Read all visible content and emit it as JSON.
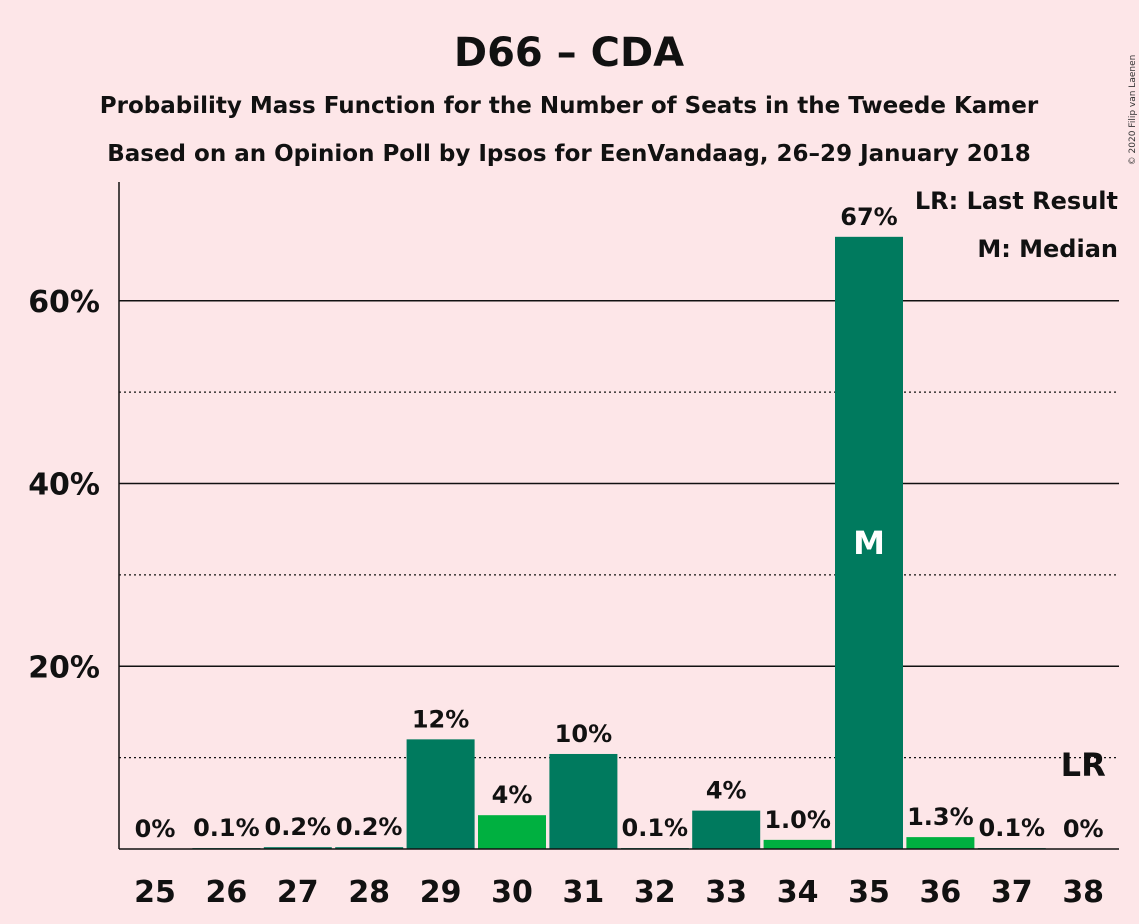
{
  "chart_data": {
    "type": "bar",
    "title": "D66 – CDA",
    "subtitle_lines": [
      "Probability Mass Function for the Number of Seats in the Tweede Kamer",
      "Based on an Opinion Poll by Ipsos for EenVandaag, 26–29 January 2018"
    ],
    "copyright": "© 2020 Filip van Laenen",
    "categories": [
      "25",
      "26",
      "27",
      "28",
      "29",
      "30",
      "31",
      "32",
      "33",
      "34",
      "35",
      "36",
      "37",
      "38"
    ],
    "values": [
      0,
      0.1,
      0.2,
      0.2,
      12,
      3.7,
      10.4,
      0.1,
      4.2,
      1.0,
      67,
      1.3,
      0.1,
      0
    ],
    "labels": [
      "0%",
      "0.1%",
      "0.2%",
      "0.2%",
      "12%",
      "4%",
      "10%",
      "0.1%",
      "4%",
      "1.0%",
      "67%",
      "1.3%",
      "0.1%",
      "0%"
    ],
    "bar_colors": [
      "#007a5e",
      "#007a5e",
      "#007a5e",
      "#007a5e",
      "#007a5e",
      "#00b040",
      "#007a5e",
      "#007a5e",
      "#007a5e",
      "#00b040",
      "#007a5e",
      "#00b040",
      "#007a5e",
      "#007a5e"
    ],
    "ylim": [
      0,
      73
    ],
    "yticks": [
      20,
      40,
      60
    ],
    "ytick_labels": [
      "20%",
      "40%",
      "60%"
    ],
    "minor_gridlines": [
      10,
      30,
      50
    ],
    "median": {
      "category": "35",
      "mark": "M"
    },
    "last_result": {
      "category": "38",
      "mark": "LR"
    },
    "legend": [
      "LR: Last Result",
      "M: Median"
    ],
    "legend_position": "top-right",
    "colors": {
      "background": "#fde6e8",
      "primary_bar": "#007a5e",
      "secondary_bar": "#00b040"
    }
  }
}
